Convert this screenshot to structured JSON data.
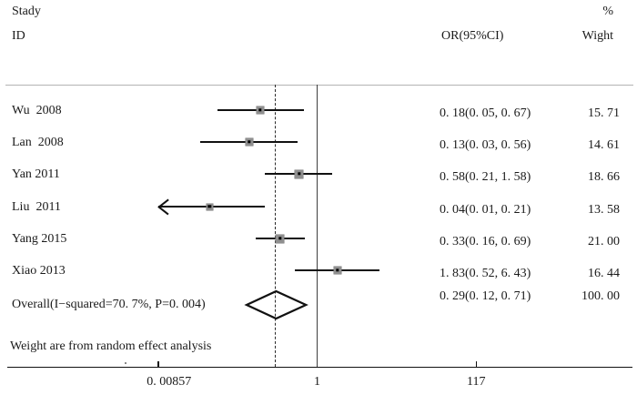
{
  "header": {
    "study_line1": "Stady",
    "study_line2": "ID",
    "or_col": "OR(95%CI)",
    "weight_col_line1": "%",
    "weight_col_line2": "Wight"
  },
  "note": "Weight are from random effect analysis",
  "colors": {
    "text": "#1a1a1a",
    "line": "#111111",
    "separator": "#b3b3b3",
    "marker_fill": "#8f8f8f"
  },
  "chart_data": {
    "type": "forest",
    "effect_measure": "OR",
    "x_axis": {
      "scale": "log10",
      "ticks": [
        {
          "label": "0. 00857",
          "value": 0.00857
        },
        {
          "label": "1",
          "value": 1
        },
        {
          "label": "117",
          "value": 117
        }
      ],
      "range": [
        0.00857,
        117
      ]
    },
    "null_line_value": 1,
    "studies": [
      {
        "label": "Wu  2008",
        "or": 0.18,
        "ci_low": 0.05,
        "ci_high": 0.67,
        "or_ci_text": "0. 18(0. 05, 0. 67)",
        "weight": 15.71,
        "weight_text": "15. 71",
        "clipped_low": false
      },
      {
        "label": "Lan  2008",
        "or": 0.13,
        "ci_low": 0.03,
        "ci_high": 0.56,
        "or_ci_text": "0. 13(0. 03, 0. 56)",
        "weight": 14.61,
        "weight_text": "14. 61",
        "clipped_low": false
      },
      {
        "label": "Yan 2011",
        "or": 0.58,
        "ci_low": 0.21,
        "ci_high": 1.58,
        "or_ci_text": "0. 58(0. 21, 1. 58)",
        "weight": 18.66,
        "weight_text": "18. 66",
        "clipped_low": false
      },
      {
        "label": "Liu  2011",
        "or": 0.04,
        "ci_low": 0.01,
        "ci_high": 0.21,
        "or_ci_text": "0. 04(0. 01, 0. 21)",
        "weight": 13.58,
        "weight_text": "13. 58",
        "clipped_low": true
      },
      {
        "label": "Yang 2015",
        "or": 0.33,
        "ci_low": 0.16,
        "ci_high": 0.69,
        "or_ci_text": "0. 33(0. 16, 0. 69)",
        "weight": 21.0,
        "weight_text": "21. 00",
        "clipped_low": false
      },
      {
        "label": "Xiao 2013",
        "or": 1.83,
        "ci_low": 0.52,
        "ci_high": 6.43,
        "or_ci_text": "1. 83(0. 52, 6. 43)",
        "weight": 16.44,
        "weight_text": "16. 44",
        "clipped_low": false
      }
    ],
    "overall": {
      "label": "Overall(I−squared=70. 7%, P=0. 004)",
      "or": 0.29,
      "ci_low": 0.12,
      "ci_high": 0.71,
      "or_ci_text": "0. 29(0. 12, 0. 71)",
      "weight_text": "100. 00",
      "heterogeneity_i_squared": "70. 7%",
      "heterogeneity_p": "0. 004"
    }
  }
}
